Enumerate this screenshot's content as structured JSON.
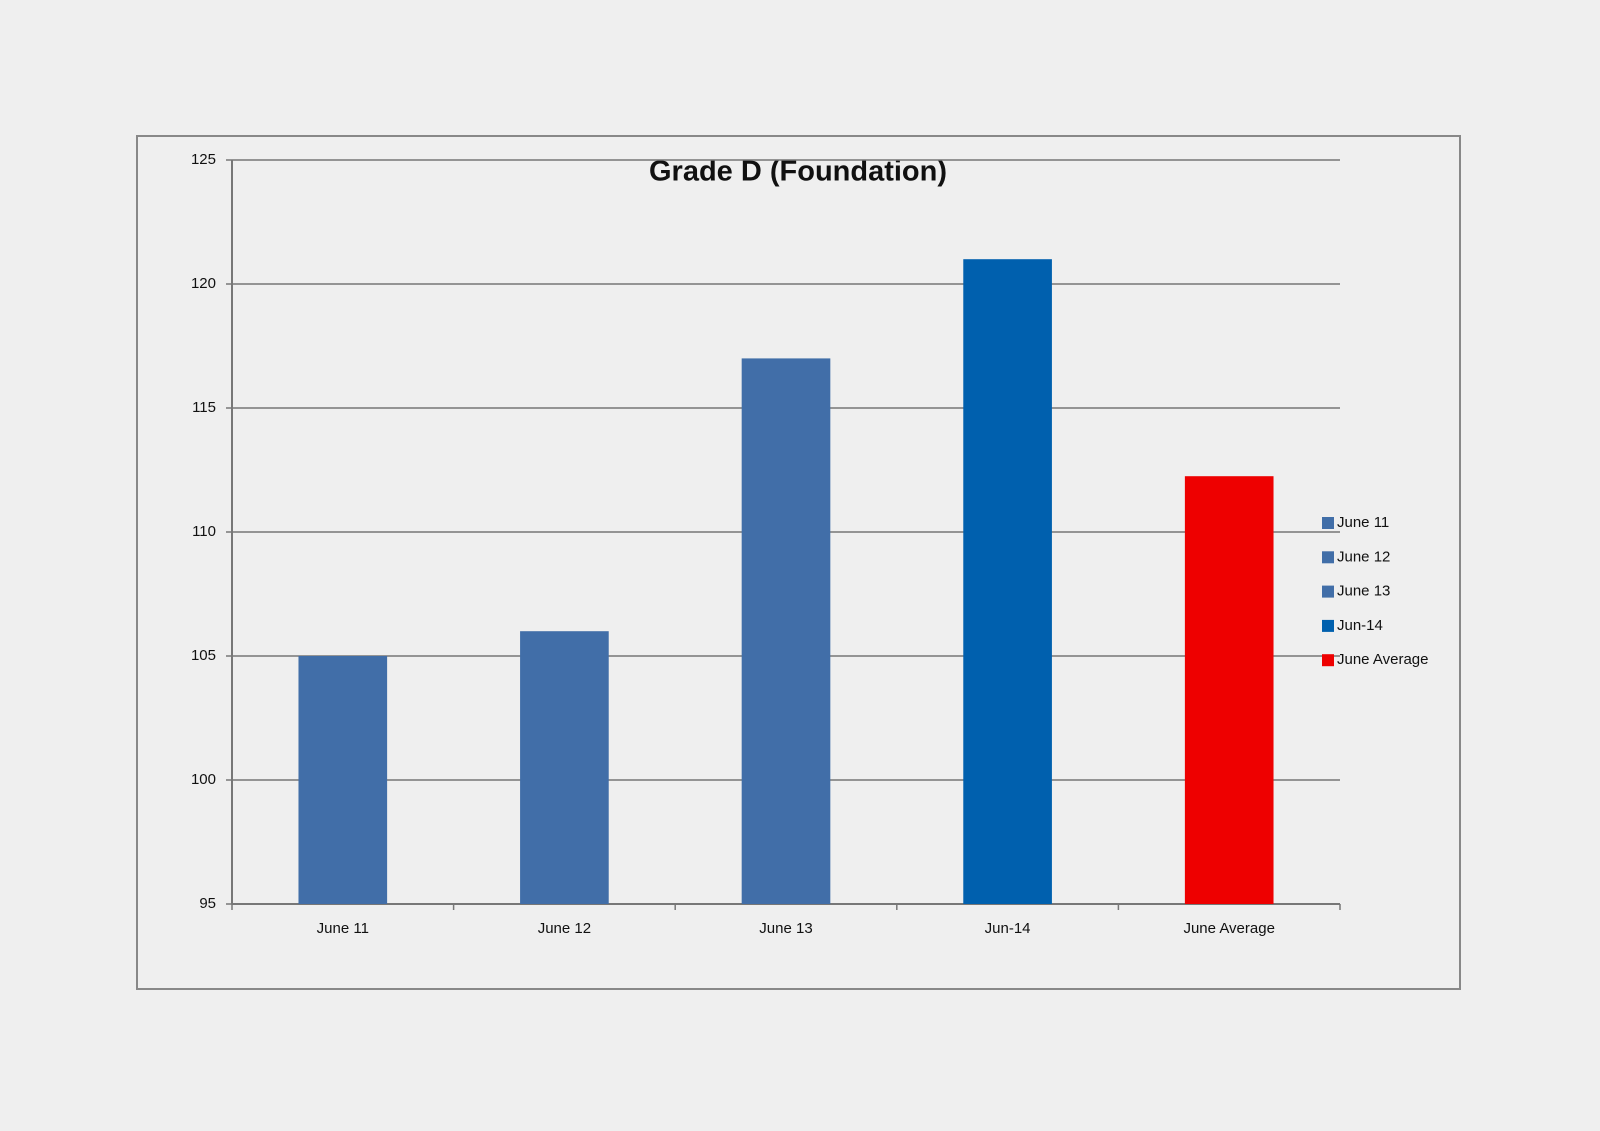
{
  "chart_data": {
    "type": "bar",
    "title": "Grade D  (Foundation)",
    "categories": [
      "June 11",
      "June 12",
      "June 13",
      "Jun-14",
      "June Average"
    ],
    "values": [
      105,
      106,
      117,
      121,
      112.25
    ],
    "colors": [
      "#416ea8",
      "#416ea8",
      "#416ea8",
      "#0060ae",
      "#ee0000"
    ],
    "ylim": [
      95,
      125
    ],
    "yticks": [
      95,
      100,
      105,
      110,
      115,
      120,
      125
    ],
    "grid": true,
    "legend": "right"
  }
}
